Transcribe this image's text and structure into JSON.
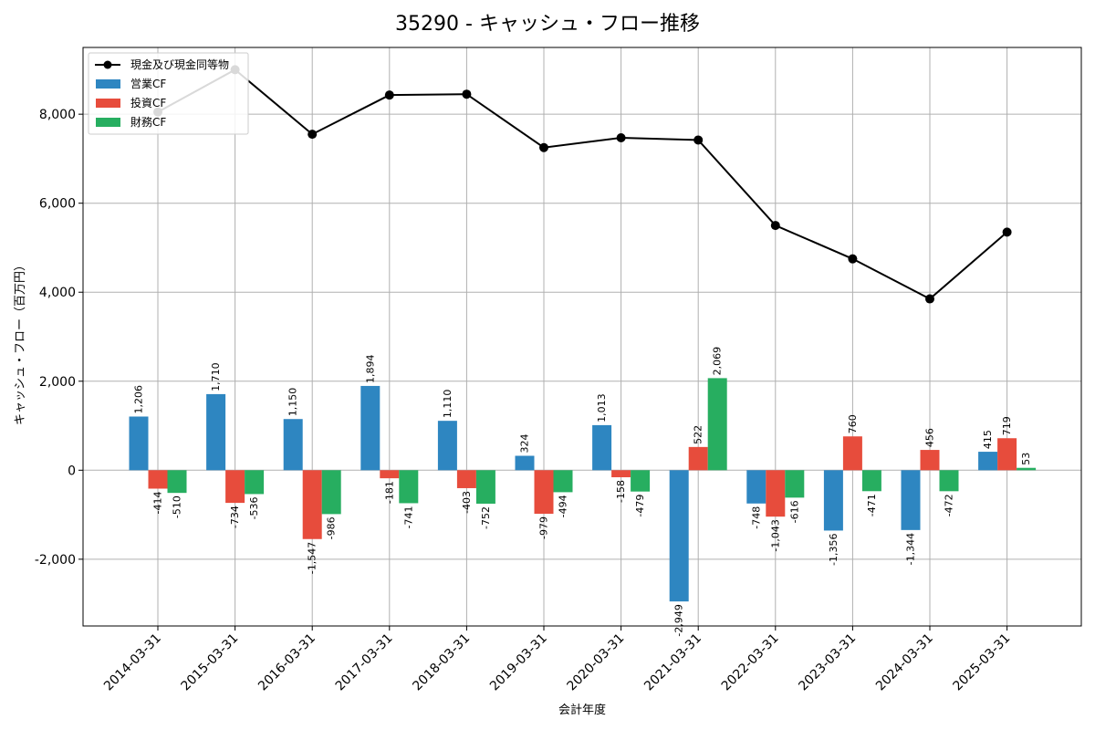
{
  "chart_data": {
    "type": "bar",
    "title": "35290 - キャッシュ・フロー推移",
    "xlabel": "会計年度",
    "ylabel": "キャッシュ・フロー（百万円）",
    "ylim": [
      -3500,
      9500
    ],
    "yticks": [
      -2000,
      0,
      2000,
      4000,
      6000,
      8000
    ],
    "grid": true,
    "legend_position": "top-left",
    "categories": [
      "2014-03-31",
      "2015-03-31",
      "2016-03-31",
      "2017-03-31",
      "2018-03-31",
      "2019-03-31",
      "2020-03-31",
      "2021-03-31",
      "2022-03-31",
      "2023-03-31",
      "2024-03-31",
      "2025-03-31"
    ],
    "series": [
      {
        "name": "営業CF",
        "kind": "bar",
        "color": "#2e86c1",
        "values": [
          1206,
          1710,
          1150,
          1894,
          1110,
          324,
          1013,
          -2949,
          -748,
          -1356,
          -1344,
          415
        ],
        "labels": [
          "1,206",
          "1,710",
          "1,150",
          "1,894",
          "1,110",
          "324",
          "1,013",
          "-2,949",
          "-748",
          "-1,356",
          "-1,344",
          "415"
        ]
      },
      {
        "name": "投資CF",
        "kind": "bar",
        "color": "#e74c3c",
        "values": [
          -414,
          -734,
          -1547,
          -181,
          -403,
          -979,
          -158,
          522,
          -1043,
          760,
          456,
          719
        ],
        "labels": [
          "-414",
          "-734",
          "-1,547",
          "-181",
          "-403",
          "-979",
          "-158",
          "522",
          "-1,043",
          "760",
          "456",
          "719"
        ]
      },
      {
        "name": "財務CF",
        "kind": "bar",
        "color": "#27ae60",
        "values": [
          -510,
          -536,
          -986,
          -741,
          -752,
          -494,
          -479,
          2069,
          -616,
          -471,
          -472,
          53
        ],
        "labels": [
          "-510",
          "-536",
          "-986",
          "-741",
          "-752",
          "-494",
          "-479",
          "2,069",
          "-616",
          "-471",
          "-472",
          "53"
        ]
      },
      {
        "name": "現金及び現金同等物",
        "kind": "line",
        "color": "#000000",
        "values": [
          8050,
          9000,
          7550,
          8430,
          8450,
          7250,
          7470,
          7420,
          5500,
          4750,
          3850,
          5350
        ]
      }
    ]
  }
}
